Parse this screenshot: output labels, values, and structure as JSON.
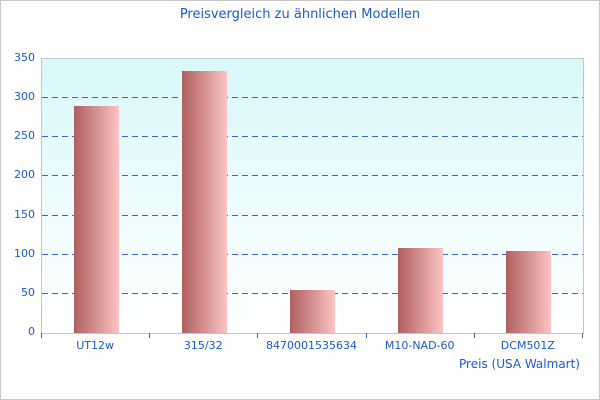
{
  "title": "Preisvergleich zu ähnlichen Modellen",
  "chart_data": {
    "type": "bar",
    "title": "Preisvergleich zu ähnlichen Modellen",
    "categories": [
      "UT12w",
      "315/32",
      "8470001535634",
      "M10-NAD-60",
      "DCM501Z"
    ],
    "values": [
      290,
      335,
      55,
      108,
      105
    ],
    "xlabel": "Preis (USA Walmart)",
    "ylabel": "",
    "ylim": [
      0,
      350
    ],
    "ytick_step": 50,
    "grid": "horizontal-dashed",
    "legend": "none",
    "colors": {
      "title_text": "#1c59d5",
      "axis_text": "#1c59d5",
      "gridline": "#3e64c8",
      "tick_mark": "#3e64c8",
      "plot_border": "#c6c6c6",
      "bar_gradient_left": "#b05f5f",
      "bar_gradient_right": "#fcc4c4",
      "plot_bg_top": "#d9f7fa",
      "plot_bg_bottom": "#ffffff"
    }
  }
}
